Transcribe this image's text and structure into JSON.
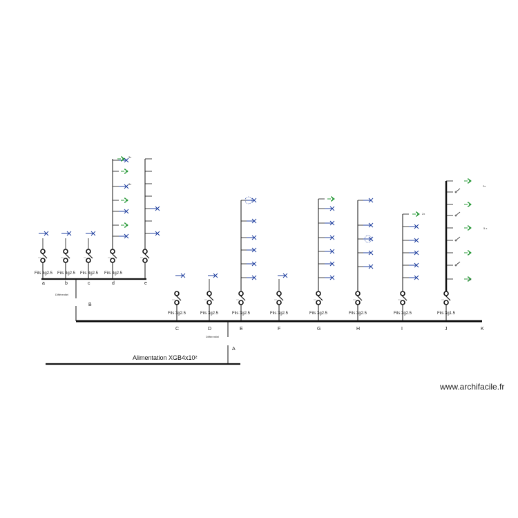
{
  "colors": {
    "line": "#111111",
    "bulb": "#1f3f9f",
    "socket": "#2a9a3a"
  },
  "main": {
    "cable_label": "Alimentation XGB4x10²",
    "breaker_label": "Différentiel",
    "breaker_letter": "A"
  },
  "sub_panel": {
    "letter": "B",
    "breaker_label": "Différentiel",
    "circuits": [
      {
        "letter": "a",
        "cable": "Fils 3g2.5"
      },
      {
        "letter": "b",
        "cable": "Fils 3g2.5"
      },
      {
        "letter": "c",
        "cable": "Fils 3g2.5"
      },
      {
        "letter": "d",
        "cable": "Fils 3g2.5"
      },
      {
        "letter": "e",
        "cable": ""
      }
    ]
  },
  "main_circuits": [
    {
      "letter": "C",
      "cable": "Fils 3g2.5"
    },
    {
      "letter": "D",
      "cable": "Fils 3g2.5"
    },
    {
      "letter": "E",
      "cable": "Fils 3g2.5"
    },
    {
      "letter": "F",
      "cable": "Fils 3g2.5"
    },
    {
      "letter": "G",
      "cable": "Fils 3g2.5"
    },
    {
      "letter": "H",
      "cable": "Fils 3g2.5"
    },
    {
      "letter": "I",
      "cable": "Fils 3g2.5"
    },
    {
      "letter": "J",
      "cable": "Fils 3g1.5"
    },
    {
      "letter": "K",
      "cable": ""
    }
  ],
  "socket_counts": {
    "d_top": "3x",
    "d_second": "3x",
    "i_top": "2x",
    "j_top": "2x",
    "j_mid": "5 x",
    "j_bottom": "2 x"
  },
  "watermark": "www.archifacile.fr"
}
